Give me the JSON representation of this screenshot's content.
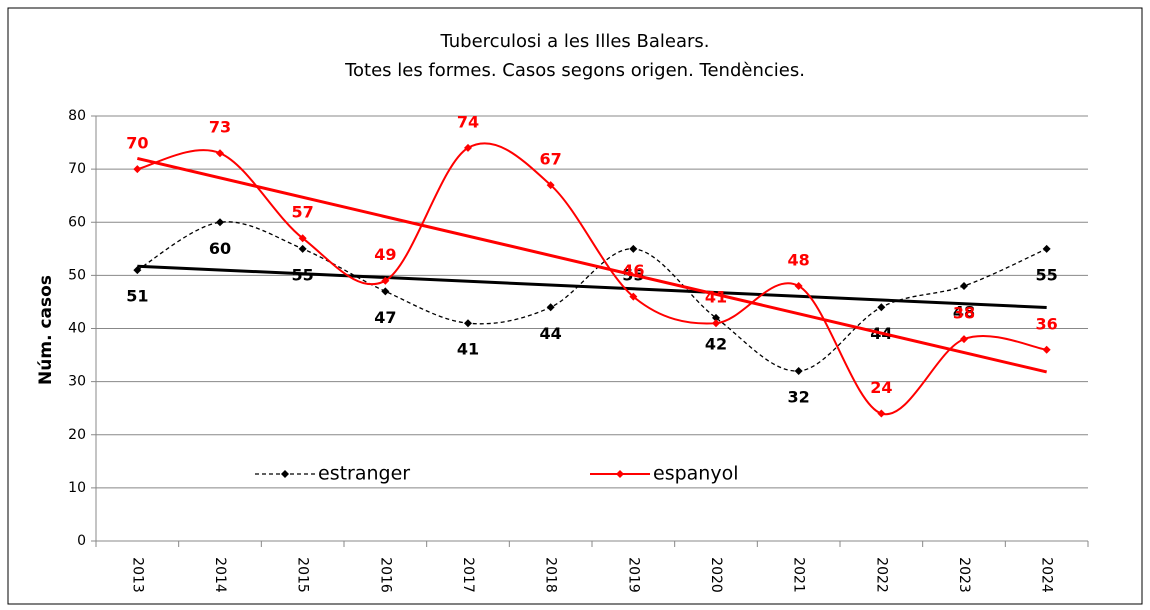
{
  "chart_data": {
    "type": "line",
    "title": [
      "Tuberculosi a les Illes Balears.",
      "Totes les formes. Casos segons origen. Tendències."
    ],
    "y_label": "Núm. casos",
    "categories": [
      "2013",
      "2014",
      "2015",
      "2016",
      "2017",
      "2018",
      "2019",
      "2020",
      "2021",
      "2022",
      "2023",
      "2024"
    ],
    "series": [
      {
        "name": "estranger",
        "color": "#000000",
        "dashed": true,
        "values": [
          51,
          60,
          55,
          47,
          41,
          44,
          55,
          42,
          32,
          44,
          48,
          55
        ]
      },
      {
        "name": "espanyol",
        "color": "#ff0000",
        "dashed": false,
        "values": [
          70,
          73,
          57,
          49,
          74,
          67,
          46,
          41,
          48,
          24,
          38,
          36
        ]
      }
    ],
    "ylim": [
      0,
      80
    ],
    "yticks": [
      0,
      10,
      20,
      30,
      40,
      50,
      60,
      70,
      80
    ],
    "grid": true,
    "smooth": true,
    "trendline": true,
    "data_labels": true
  }
}
